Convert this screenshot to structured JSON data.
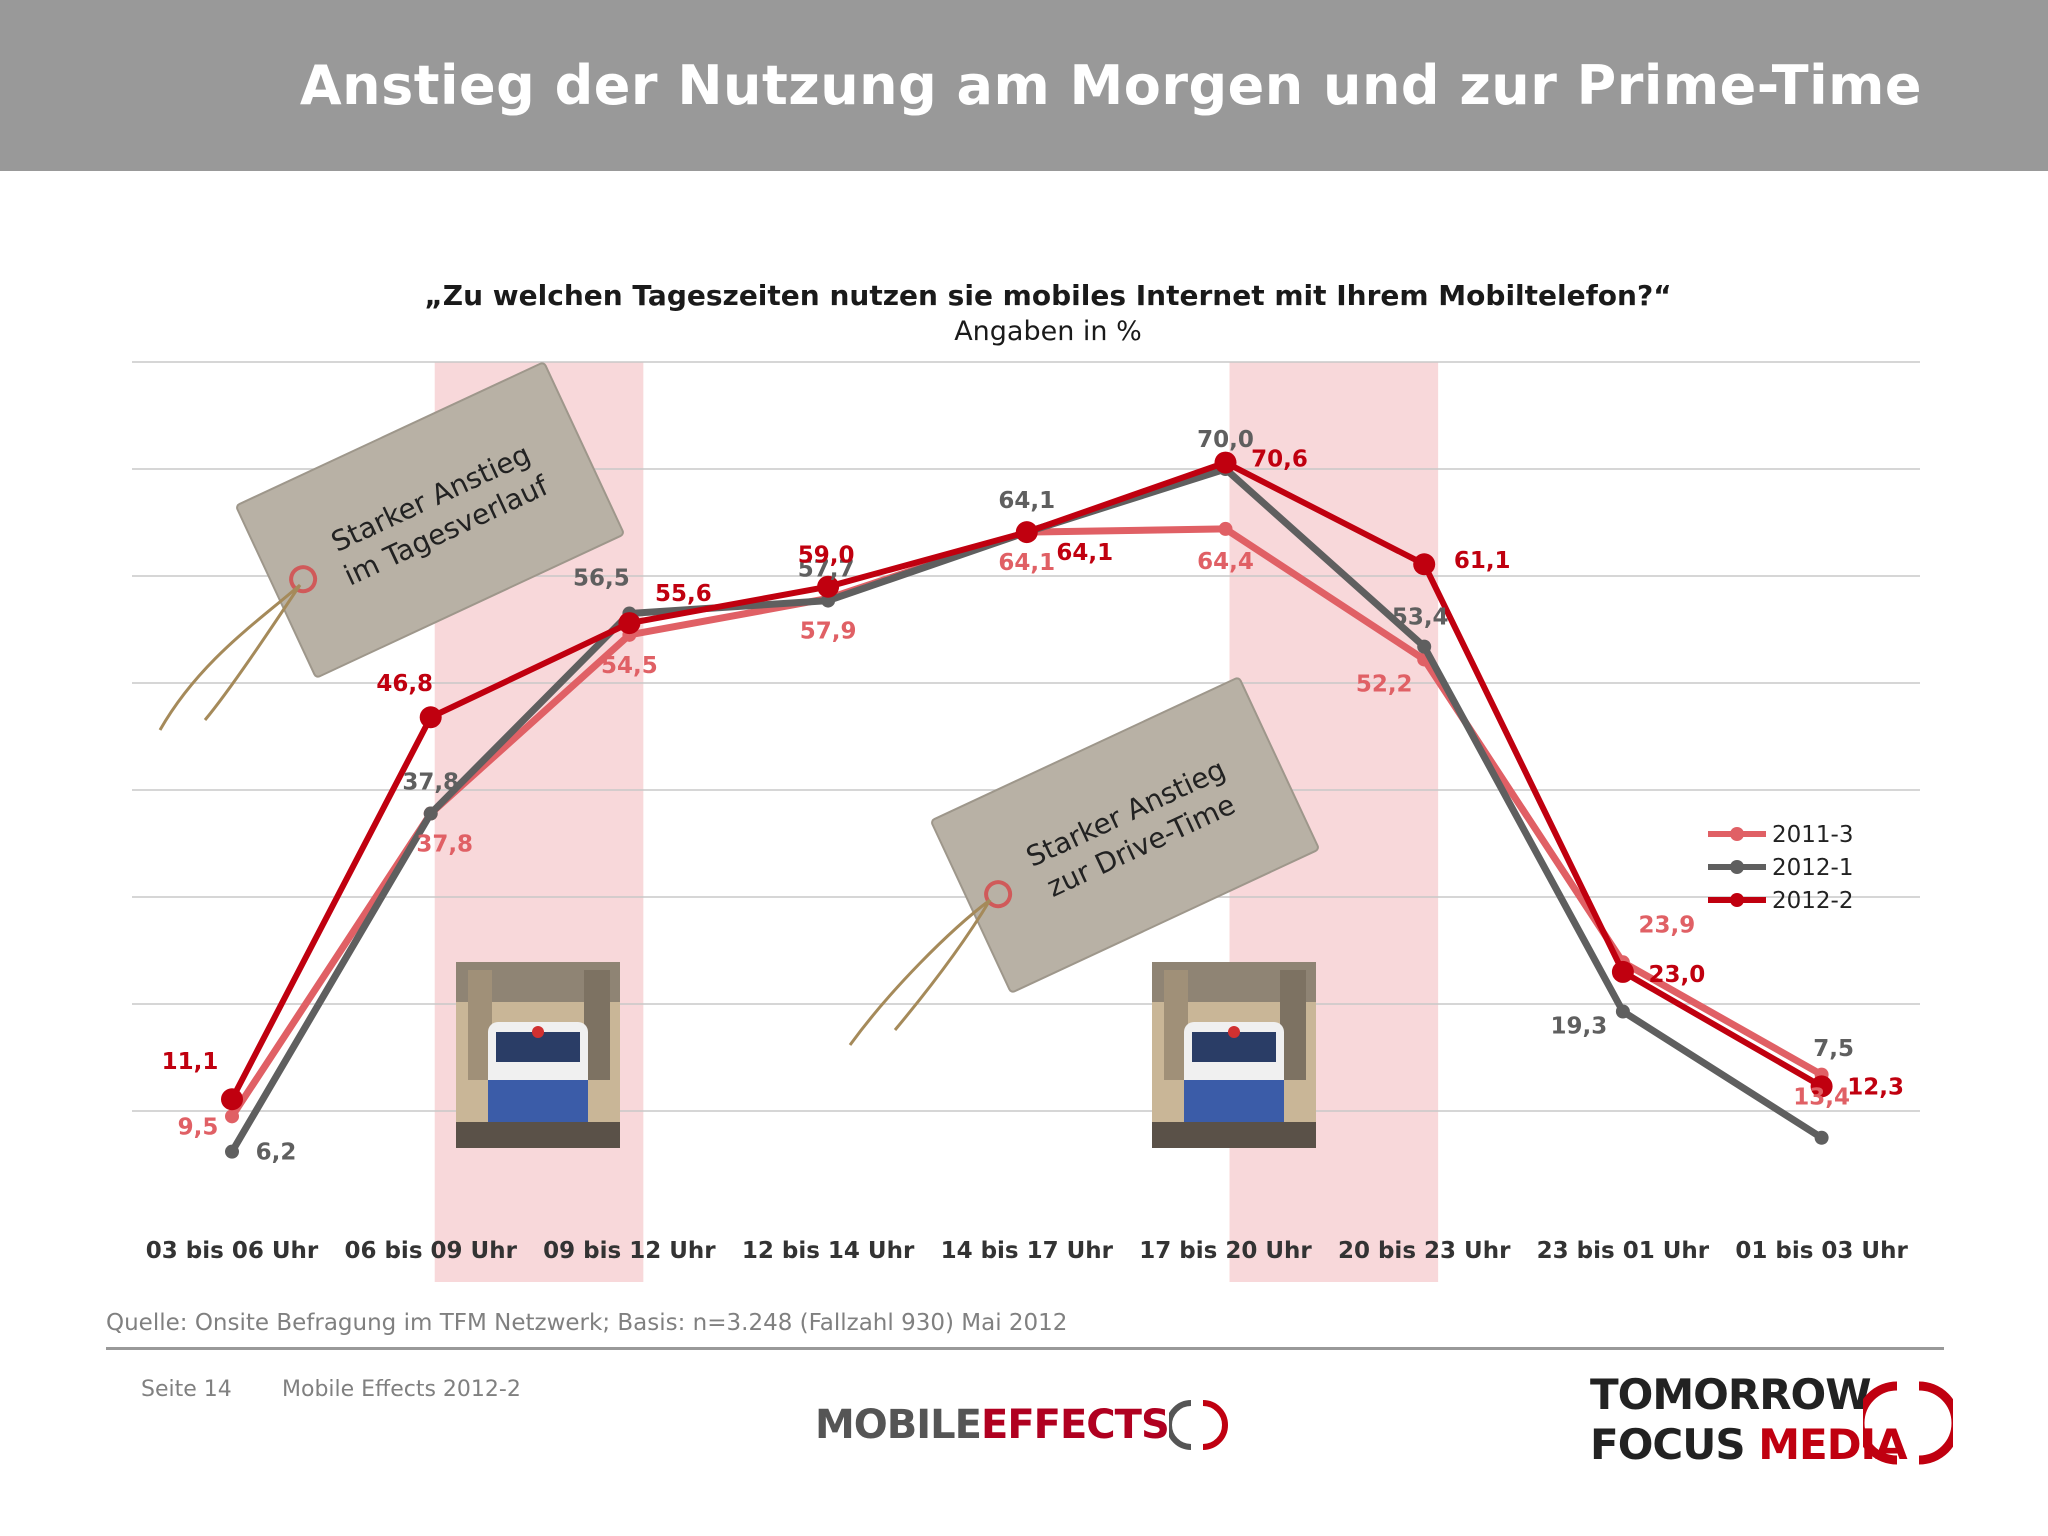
{
  "header": {
    "title": "Anstieg der Nutzung am Morgen und zur Prime-Time"
  },
  "chart_data": {
    "type": "line",
    "title": "„Zu welchen Tageszeiten nutzen sie mobiles Internet mit Ihrem Mobiltelefon?“",
    "subtitle": "Angaben in %",
    "categories": [
      "03 bis 06 Uhr",
      "06 bis 09 Uhr",
      "09 bis 12 Uhr",
      "12 bis 14 Uhr",
      "14 bis 17 Uhr",
      "17 bis 20 Uhr",
      "20 bis 23 Uhr",
      "23 bis 01 Uhr",
      "01 bis 03 Uhr"
    ],
    "ylim": [
      0,
      80
    ],
    "grid": true,
    "legend": "right",
    "highlighted_categories": [
      "06 bis 09 Uhr",
      "17 bis 20 Uhr"
    ],
    "series": [
      {
        "name": "2011-3",
        "color": "#e06065",
        "values": [
          9.5,
          37.8,
          54.5,
          57.9,
          64.1,
          64.4,
          52.2,
          23.9,
          13.4
        ],
        "labels": [
          "9,5",
          "37,8",
          "54,5",
          "57,9",
          "64,1",
          "64,4",
          "52,2",
          "23,9",
          "13,4"
        ]
      },
      {
        "name": "2012-1",
        "color": "#5f5f5f",
        "values": [
          6.2,
          37.8,
          56.5,
          57.7,
          64.1,
          70.0,
          53.4,
          19.3,
          7.5
        ],
        "labels": [
          "6,2",
          "37,8",
          "56,5",
          "57,7",
          "64,1",
          "70,0",
          "53,4",
          "19,3",
          "7,5"
        ]
      },
      {
        "name": "2012-2",
        "color": "#c0000f",
        "values": [
          11.1,
          46.8,
          55.6,
          59.0,
          64.1,
          70.6,
          61.1,
          23.0,
          12.3
        ],
        "labels": [
          "11,1",
          "46,8",
          "55,6",
          "59,0",
          "64,1",
          "70,6",
          "61,1",
          "23,0",
          "12,3"
        ]
      }
    ],
    "annotations": [
      {
        "lines": [
          "Starker Anstieg",
          "im Tagesverlauf"
        ]
      },
      {
        "lines": [
          "Starker Anstieg",
          "zur Drive-Time"
        ]
      }
    ]
  },
  "footer": {
    "source": "Quelle: Onsite Befragung im TFM Netzwerk; Basis: n=3.248 (Fallzahl 930) Mai 2012",
    "page": "Seite 14",
    "doc": "Mobile Effects 2012-2",
    "logo_left_a": "MOBILE",
    "logo_left_b": "EFFECTS",
    "logo_right_1": "TOMORROW",
    "logo_right_2": "FOCUS ",
    "logo_right_3": "MEDIA"
  }
}
